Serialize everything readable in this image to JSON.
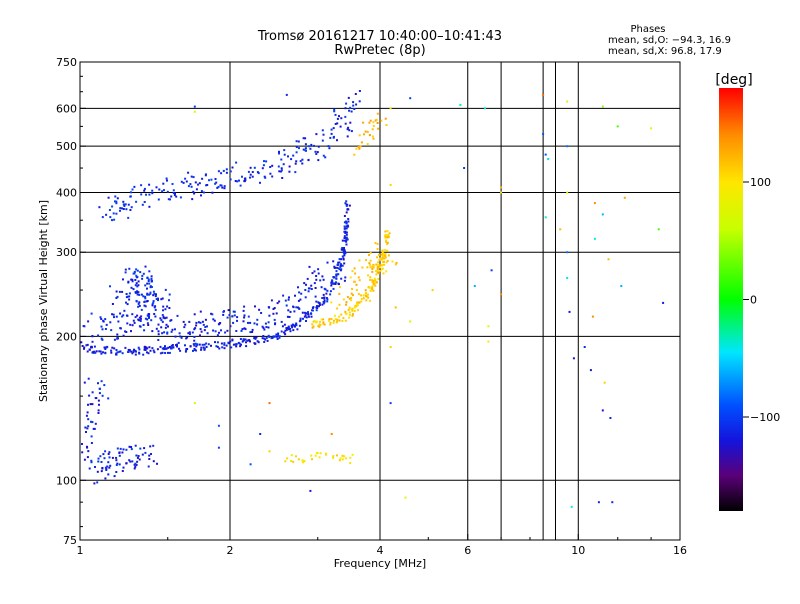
{
  "chart_data": {
    "type": "scatter",
    "title": "Tromsø 20161217 10:40:00–10:41:43",
    "subtitle": "RwPretec (8p)",
    "xlabel": "Frequency [MHz]",
    "ylabel": "Stationary phase Virtual Height [km]",
    "x_scale": "log",
    "y_scale": "log",
    "xlim": [
      1,
      16
    ],
    "ylim": [
      75,
      750
    ],
    "x_ticks": [
      1,
      2,
      4,
      6,
      10,
      16
    ],
    "x_tick_labels": [
      "1",
      "2",
      "4",
      "6",
      "10",
      "16"
    ],
    "x_gridlines": [
      2,
      4,
      6,
      7,
      8.5,
      9,
      10
    ],
    "y_ticks": [
      75,
      100,
      200,
      300,
      400,
      500,
      600,
      750
    ],
    "y_tick_labels": [
      "75",
      "100",
      "200",
      "300",
      "400",
      "500",
      "600",
      "750"
    ],
    "y_gridlines": [
      100,
      200,
      300,
      400,
      500,
      600
    ],
    "grid": true,
    "stats": {
      "heading": "Phases",
      "line_o": "mean, sd,O: −94.3, 16.9",
      "line_x": "mean, sd,X:  96.8, 17.9"
    },
    "colorbar": {
      "label": "[deg]",
      "range": [
        -180,
        180
      ],
      "ticks": [
        100,
        0,
        -100
      ],
      "tick_labels": [
        "100",
        "0",
        "−100"
      ],
      "stops": [
        {
          "v": -180,
          "color": "#000000"
        },
        {
          "v": -150,
          "color": "#5a0078"
        },
        {
          "v": -120,
          "color": "#1414dc"
        },
        {
          "v": -90,
          "color": "#0050ff"
        },
        {
          "v": -45,
          "color": "#00e6ff"
        },
        {
          "v": 0,
          "color": "#00ff00"
        },
        {
          "v": 60,
          "color": "#c8ff00"
        },
        {
          "v": 100,
          "color": "#ffe600"
        },
        {
          "v": 140,
          "color": "#ff8c00"
        },
        {
          "v": 180,
          "color": "#ff0000"
        }
      ]
    },
    "series": [
      {
        "trace": "o-mode F region lower trace",
        "mode": "curve",
        "points": [
          [
            1.0,
            195
          ],
          [
            1.05,
            188
          ],
          [
            1.1,
            187
          ],
          [
            1.2,
            186
          ],
          [
            1.3,
            186
          ],
          [
            1.4,
            187
          ],
          [
            1.5,
            188
          ],
          [
            1.7,
            190
          ],
          [
            1.9,
            192
          ],
          [
            2.1,
            194
          ],
          [
            2.3,
            196
          ],
          [
            2.5,
            200
          ],
          [
            2.65,
            207
          ],
          [
            2.8,
            216
          ],
          [
            2.95,
            227
          ],
          [
            3.1,
            240
          ],
          [
            3.2,
            255
          ],
          [
            3.3,
            275
          ],
          [
            3.38,
            300
          ],
          [
            3.42,
            330
          ],
          [
            3.45,
            380
          ]
        ],
        "phase": -115,
        "spread": 4,
        "density": 10
      },
      {
        "trace": "o-mode F region spread echoes",
        "mode": "cloud",
        "points": [
          [
            1.05,
            215
          ],
          [
            1.15,
            205
          ],
          [
            1.25,
            210
          ],
          [
            1.35,
            225
          ],
          [
            1.45,
            210
          ],
          [
            1.6,
            205
          ],
          [
            1.8,
            210
          ],
          [
            2.0,
            215
          ],
          [
            2.2,
            218
          ],
          [
            2.4,
            220
          ],
          [
            2.6,
            225
          ],
          [
            2.8,
            240
          ],
          [
            3.0,
            260
          ],
          [
            3.2,
            270
          ],
          [
            3.3,
            285
          ]
        ],
        "phase": -115,
        "spread": 14,
        "density": 10
      },
      {
        "trace": "o-mode patch near 1.4 MHz",
        "mode": "cloud",
        "points": [
          [
            1.3,
            250
          ],
          [
            1.35,
            240
          ],
          [
            1.4,
            235
          ],
          [
            1.45,
            230
          ],
          [
            1.3,
            270
          ],
          [
            1.2,
            240
          ]
        ],
        "phase": -110,
        "spread": 14,
        "density": 12
      },
      {
        "trace": "o-mode F2 second hop",
        "mode": "cloud",
        "points": [
          [
            1.1,
            370
          ],
          [
            1.2,
            370
          ],
          [
            1.3,
            390
          ],
          [
            1.4,
            400
          ],
          [
            1.5,
            405
          ],
          [
            1.6,
            410
          ],
          [
            1.7,
            415
          ],
          [
            1.8,
            420
          ],
          [
            1.9,
            430
          ],
          [
            2.0,
            435
          ],
          [
            2.2,
            440
          ],
          [
            2.4,
            450
          ],
          [
            2.6,
            470
          ],
          [
            2.8,
            490
          ],
          [
            3.0,
            500
          ],
          [
            3.2,
            520
          ],
          [
            3.35,
            550
          ],
          [
            3.45,
            590
          ],
          [
            3.55,
            630
          ]
        ],
        "phase": -110,
        "spread": 12,
        "density": 8
      },
      {
        "trace": "o-mode lower patch",
        "mode": "cloud",
        "points": [
          [
            1.05,
            160
          ],
          [
            1.1,
            150
          ],
          [
            1.05,
            140
          ],
          [
            1.0,
            115
          ],
          [
            1.1,
            110
          ],
          [
            1.2,
            110
          ],
          [
            1.3,
            112
          ],
          [
            1.4,
            115
          ],
          [
            1.05,
            103
          ]
        ],
        "phase": -115,
        "spread": 12,
        "density": 6
      },
      {
        "trace": "x-mode F region trace",
        "mode": "curve",
        "points": [
          [
            2.9,
            212
          ],
          [
            3.0,
            213
          ],
          [
            3.2,
            215
          ],
          [
            3.4,
            220
          ],
          [
            3.55,
            228
          ],
          [
            3.7,
            240
          ],
          [
            3.85,
            255
          ],
          [
            3.95,
            270
          ],
          [
            4.05,
            290
          ],
          [
            4.1,
            310
          ],
          [
            4.15,
            330
          ]
        ],
        "phase": 110,
        "spread": 4,
        "density": 10
      },
      {
        "trace": "x-mode spread echoes",
        "mode": "cloud",
        "points": [
          [
            3.3,
            230
          ],
          [
            3.5,
            240
          ],
          [
            3.7,
            255
          ],
          [
            3.9,
            270
          ],
          [
            4.0,
            285
          ],
          [
            4.1,
            300
          ],
          [
            3.8,
            280
          ],
          [
            3.6,
            260
          ]
        ],
        "phase": 115,
        "spread": 12,
        "density": 8
      },
      {
        "trace": "x-mode upper trace",
        "mode": "cloud",
        "points": [
          [
            3.6,
            490
          ],
          [
            3.7,
            510
          ],
          [
            3.8,
            530
          ],
          [
            3.9,
            545
          ],
          [
            4.0,
            560
          ],
          [
            4.1,
            575
          ]
        ],
        "phase": 120,
        "spread": 8,
        "density": 6
      },
      {
        "trace": "x-mode low echoes",
        "mode": "cloud",
        "points": [
          [
            2.5,
            112
          ],
          [
            2.8,
            111
          ],
          [
            3.0,
            112
          ],
          [
            3.2,
            112
          ],
          [
            3.5,
            111
          ],
          [
            3.4,
            110
          ]
        ],
        "phase": 100,
        "spread": 4,
        "density": 4
      }
    ],
    "isolated_points": [
      [
        1.7,
        605,
        -100
      ],
      [
        1.7,
        590,
        60
      ],
      [
        2.6,
        640,
        -110
      ],
      [
        4.6,
        630,
        -100
      ],
      [
        5.8,
        610,
        -30
      ],
      [
        6.5,
        600,
        -40
      ],
      [
        8.5,
        640,
        150
      ],
      [
        9.5,
        620,
        60
      ],
      [
        11.2,
        605,
        40
      ],
      [
        12.0,
        550,
        20
      ],
      [
        14.0,
        545,
        90
      ],
      [
        8.5,
        530,
        -90
      ],
      [
        9.5,
        500,
        -80
      ],
      [
        8.6,
        480,
        -90
      ],
      [
        8.7,
        470,
        -40
      ],
      [
        5.9,
        450,
        -100
      ],
      [
        7.0,
        410,
        120
      ],
      [
        9.5,
        400,
        80
      ],
      [
        7.0,
        400,
        90
      ],
      [
        4.2,
        415,
        110
      ],
      [
        10.8,
        380,
        140
      ],
      [
        12.4,
        390,
        130
      ],
      [
        11.2,
        360,
        -60
      ],
      [
        8.6,
        355,
        -40
      ],
      [
        9.2,
        335,
        120
      ],
      [
        10.8,
        320,
        -40
      ],
      [
        9.5,
        300,
        -80
      ],
      [
        11.5,
        290,
        120
      ],
      [
        12.2,
        255,
        -60
      ],
      [
        14.5,
        335,
        20
      ],
      [
        6.2,
        255,
        -60
      ],
      [
        6.7,
        275,
        -100
      ],
      [
        9.5,
        265,
        -40
      ],
      [
        7.0,
        245,
        140
      ],
      [
        5.1,
        250,
        110
      ],
      [
        4.3,
        230,
        120
      ],
      [
        4.6,
        215,
        60
      ],
      [
        9.6,
        225,
        -120
      ],
      [
        10.7,
        220,
        140
      ],
      [
        14.8,
        235,
        -120
      ],
      [
        10.3,
        190,
        -110
      ],
      [
        9.8,
        180,
        -120
      ],
      [
        10.6,
        170,
        -120
      ],
      [
        11.3,
        160,
        110
      ],
      [
        6.6,
        210,
        80
      ],
      [
        6.6,
        195,
        100
      ],
      [
        4.2,
        190,
        110
      ],
      [
        4.2,
        145,
        -100
      ],
      [
        1.7,
        145,
        60
      ],
      [
        2.4,
        145,
        150
      ],
      [
        1.9,
        130,
        -90
      ],
      [
        2.3,
        125,
        -110
      ],
      [
        3.2,
        125,
        140
      ],
      [
        11.2,
        140,
        -120
      ],
      [
        11.6,
        135,
        -110
      ],
      [
        1.9,
        117,
        -100
      ],
      [
        2.4,
        115,
        110
      ],
      [
        2.2,
        108,
        -90
      ],
      [
        2.9,
        95,
        -120
      ],
      [
        4.5,
        92,
        80
      ],
      [
        9.7,
        88,
        -40
      ],
      [
        11.0,
        90,
        -110
      ],
      [
        11.7,
        90,
        -110
      ],
      [
        3.7,
        560,
        130
      ],
      [
        4.2,
        600,
        90
      ]
    ]
  }
}
